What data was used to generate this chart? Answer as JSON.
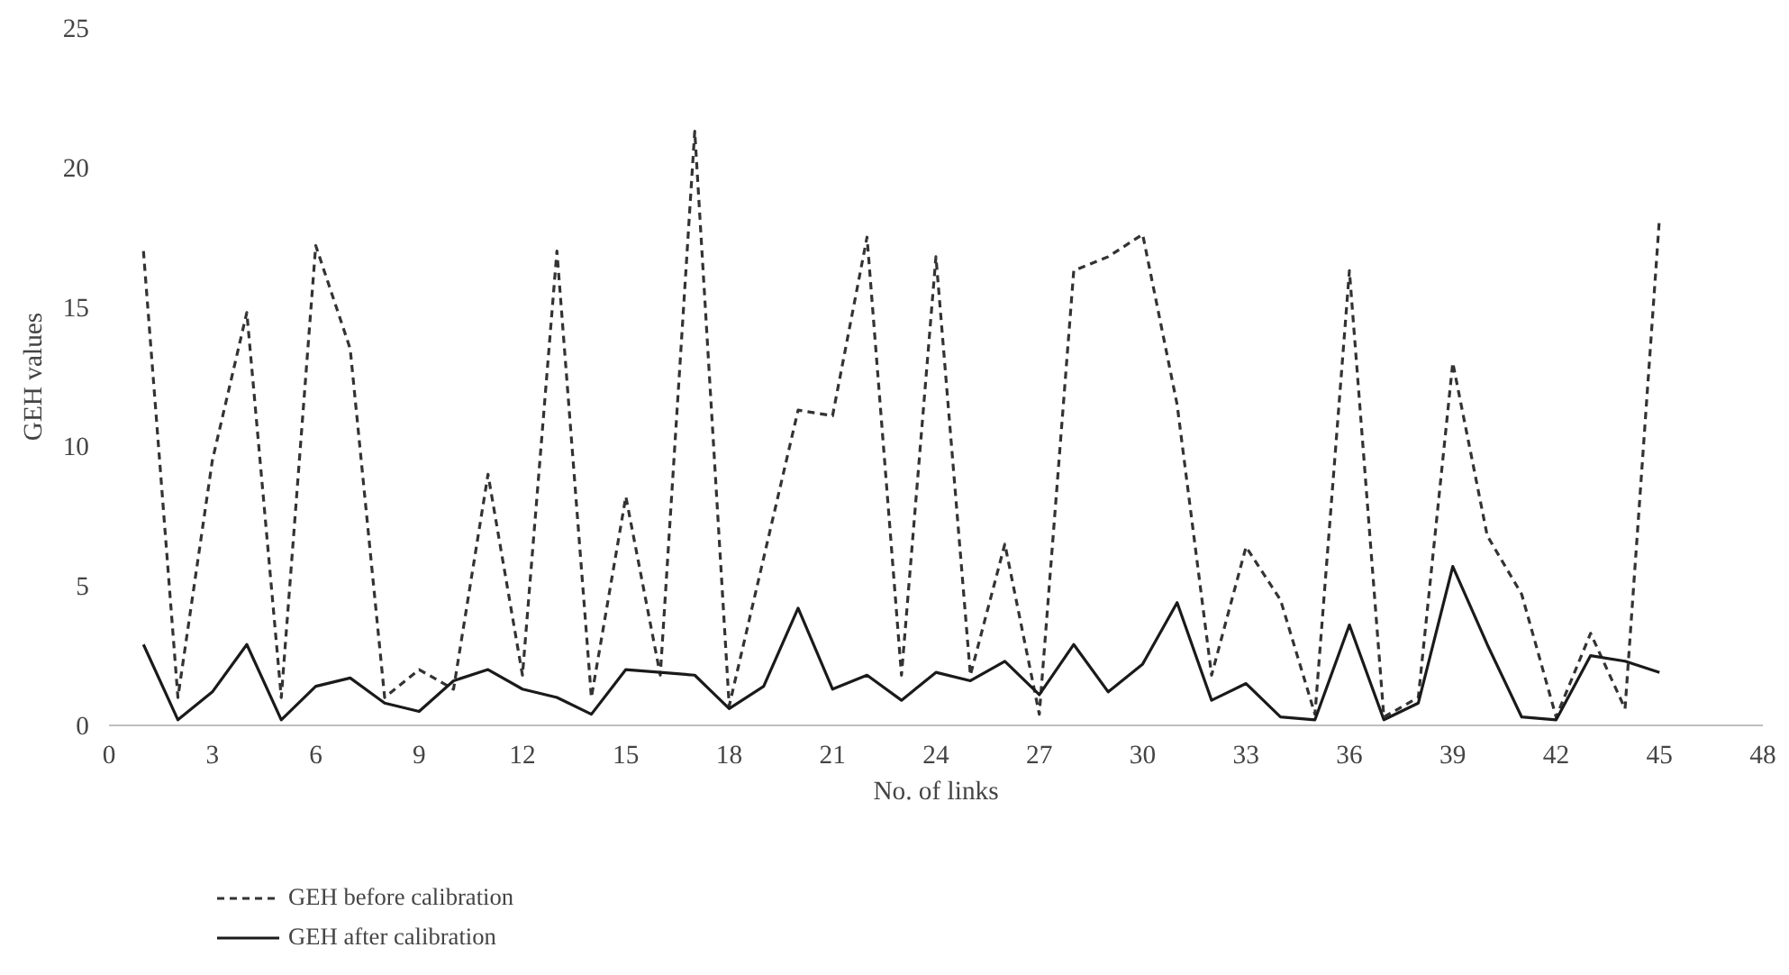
{
  "chart_data": {
    "type": "line",
    "xlabel": "No. of links",
    "ylabel": "GEH values",
    "x": [
      1,
      2,
      3,
      4,
      5,
      6,
      7,
      8,
      9,
      10,
      11,
      12,
      13,
      14,
      15,
      16,
      17,
      18,
      19,
      20,
      21,
      22,
      23,
      24,
      25,
      26,
      27,
      28,
      29,
      30,
      31,
      32,
      33,
      34,
      35,
      36,
      37,
      38,
      39,
      40,
      41,
      42,
      43,
      44,
      45
    ],
    "series": [
      {
        "name": "GEH before calibration",
        "color": "#333333",
        "line_style": "dashed",
        "values": [
          17,
          1,
          9.5,
          14.8,
          1,
          17.2,
          13.5,
          1,
          2,
          1.3,
          9,
          1.8,
          17,
          1,
          8.2,
          1.8,
          21.3,
          0.7,
          6,
          11.3,
          11.1,
          17.5,
          1.8,
          16.8,
          1.8,
          6.5,
          0.4,
          16.3,
          16.8,
          17.6,
          11.5,
          1.8,
          6.4,
          4.5,
          0.4,
          16.3,
          0.3,
          1,
          13,
          6.8,
          4.7,
          0.3,
          3.3,
          0.6,
          18.2
        ]
      },
      {
        "name": "GEH after calibration",
        "color": "#1a1a1a",
        "line_style": "solid",
        "values": [
          2.9,
          0.2,
          1.2,
          2.9,
          0.2,
          1.4,
          1.7,
          0.8,
          0.5,
          1.6,
          2,
          1.3,
          1,
          0.4,
          2,
          1.9,
          1.8,
          0.6,
          1.4,
          4.2,
          1.3,
          1.8,
          0.9,
          1.9,
          1.6,
          2.3,
          1.1,
          2.9,
          1.2,
          2.2,
          4.4,
          0.9,
          1.5,
          0.3,
          0.2,
          3.6,
          0.2,
          0.8,
          5.7,
          2.9,
          0.3,
          0.2,
          2.5,
          2.3,
          1.9
        ]
      }
    ],
    "xlim": [
      0,
      48
    ],
    "xticks": [
      0,
      3,
      6,
      9,
      12,
      15,
      18,
      21,
      24,
      27,
      30,
      33,
      36,
      39,
      42,
      45,
      48
    ],
    "ylim": [
      0,
      25
    ],
    "yticks": [
      0,
      5,
      10,
      15,
      20,
      25
    ],
    "grid": false,
    "legend": "bottom left",
    "marker": "none"
  }
}
